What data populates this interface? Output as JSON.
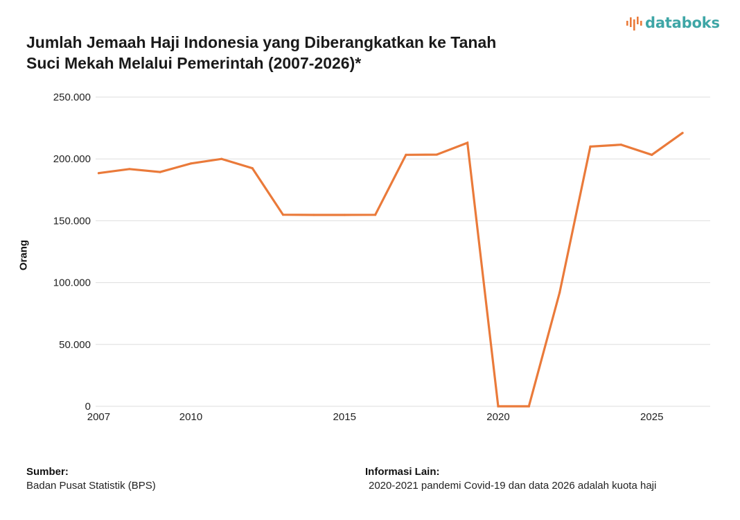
{
  "brand": {
    "name": "databoks",
    "accent": "#ea7a3a",
    "text_color": "#3ea6a6"
  },
  "chart_data": {
    "type": "line",
    "title_lines": [
      "Jumlah Jemaah Haji Indonesia yang Diberangkatkan ke Tanah",
      "Suci Mekah Melalui Pemerintah (2007-2026)*"
    ],
    "xlabel": "",
    "ylabel": "Orang",
    "x": [
      2007,
      2008,
      2009,
      2010,
      2011,
      2012,
      2013,
      2014,
      2015,
      2016,
      2017,
      2018,
      2019,
      2020,
      2021,
      2022,
      2023,
      2024,
      2025,
      2026
    ],
    "series": [
      {
        "color": "#ea7a3a",
        "values": [
          188500,
          191800,
          189400,
          196300,
          200000,
          192500,
          154900,
          154700,
          154700,
          154800,
          203300,
          203500,
          213000,
          0,
          0,
          92000,
          210000,
          211500,
          203300,
          221000
        ]
      }
    ],
    "xlim": [
      2006.9,
      2026.9
    ],
    "ylim": [
      0,
      250000
    ],
    "yticks": [
      0,
      50000,
      100000,
      150000,
      200000,
      250000
    ],
    "ytick_labels": [
      "0",
      "50.000",
      "100.000",
      "150.000",
      "200.000",
      "250.000"
    ],
    "xticks": [
      2007,
      2010,
      2015,
      2020,
      2025
    ],
    "xtick_labels": [
      "2007",
      "2010",
      "2015",
      "2020",
      "2025"
    ],
    "grid": true,
    "legend": "none"
  },
  "footer": {
    "source_label": "Sumber:",
    "source_text": "Badan Pusat Statistik (BPS)",
    "info_label": "Informasi Lain:",
    "info_text": "2020-2021 pandemi Covid-19 dan data 2026 adalah kuota haji"
  }
}
